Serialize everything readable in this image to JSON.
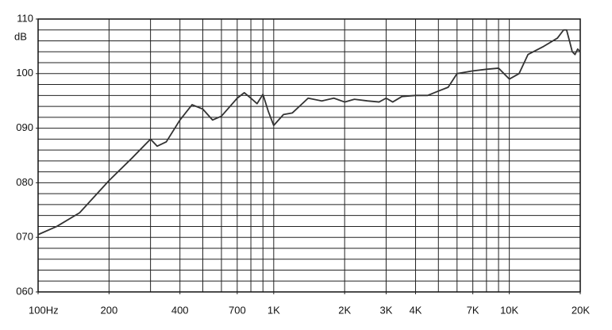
{
  "chart_data": {
    "type": "line",
    "y_label": "dB",
    "x": [
      100,
      120,
      150,
      200,
      250,
      300,
      320,
      350,
      400,
      450,
      500,
      550,
      600,
      700,
      750,
      800,
      850,
      900,
      950,
      1000,
      1100,
      1200,
      1400,
      1600,
      1800,
      2000,
      2200,
      2500,
      2800,
      3000,
      3200,
      3500,
      4000,
      4500,
      5000,
      5500,
      6000,
      7000,
      8000,
      9000,
      10000,
      11000,
      12000,
      14000,
      16000,
      17000,
      17500,
      18000,
      18500,
      19000,
      19500,
      20000
    ],
    "series": [
      {
        "color": "#333333",
        "values": [
          70.5,
          72,
          74.5,
          80.4,
          84.5,
          88,
          86.7,
          87.5,
          91.5,
          94.3,
          93.5,
          91.5,
          92.2,
          95.5,
          96.5,
          95.5,
          94.5,
          96.2,
          93,
          90.5,
          92.5,
          92.8,
          95.5,
          95,
          95.5,
          94.8,
          95.3,
          95,
          94.8,
          95.5,
          94.8,
          95.8,
          96,
          96,
          96.8,
          97.5,
          100,
          100.5,
          100.8,
          101,
          99,
          100,
          103.5,
          105,
          106.5,
          108,
          108,
          106,
          104,
          103.5,
          104.5,
          104
        ]
      }
    ],
    "xlim": [
      100,
      20000
    ],
    "ylim": [
      60,
      110
    ],
    "log_x": true,
    "xticks": [
      {
        "value": 100,
        "label": "100Hz"
      },
      200,
      400,
      700,
      {
        "value": 1000,
        "label": "1K"
      },
      {
        "value": 2000,
        "label": "2K"
      },
      {
        "value": 3000,
        "label": "3K"
      },
      {
        "value": 4000,
        "label": "4K"
      },
      {
        "value": 7000,
        "label": "7K"
      },
      {
        "value": 10000,
        "label": "10K"
      },
      {
        "value": 20000,
        "label": "20K"
      }
    ],
    "yticks": [
      {
        "value": 60,
        "label": "060"
      },
      {
        "value": 70,
        "label": "070"
      },
      {
        "value": 80,
        "label": "080"
      },
      {
        "value": 90,
        "label": "090"
      },
      100,
      110
    ],
    "xgrid": [
      100,
      200,
      300,
      400,
      500,
      600,
      700,
      800,
      900,
      1000,
      2000,
      3000,
      4000,
      5000,
      6000,
      7000,
      8000,
      9000,
      10000,
      20000
    ],
    "ygrid": [
      60,
      62,
      64,
      66,
      68,
      70,
      72,
      74,
      76,
      78,
      80,
      82,
      84,
      86,
      88,
      90,
      92,
      94,
      96,
      98,
      100,
      102,
      104,
      106,
      108,
      110
    ]
  }
}
